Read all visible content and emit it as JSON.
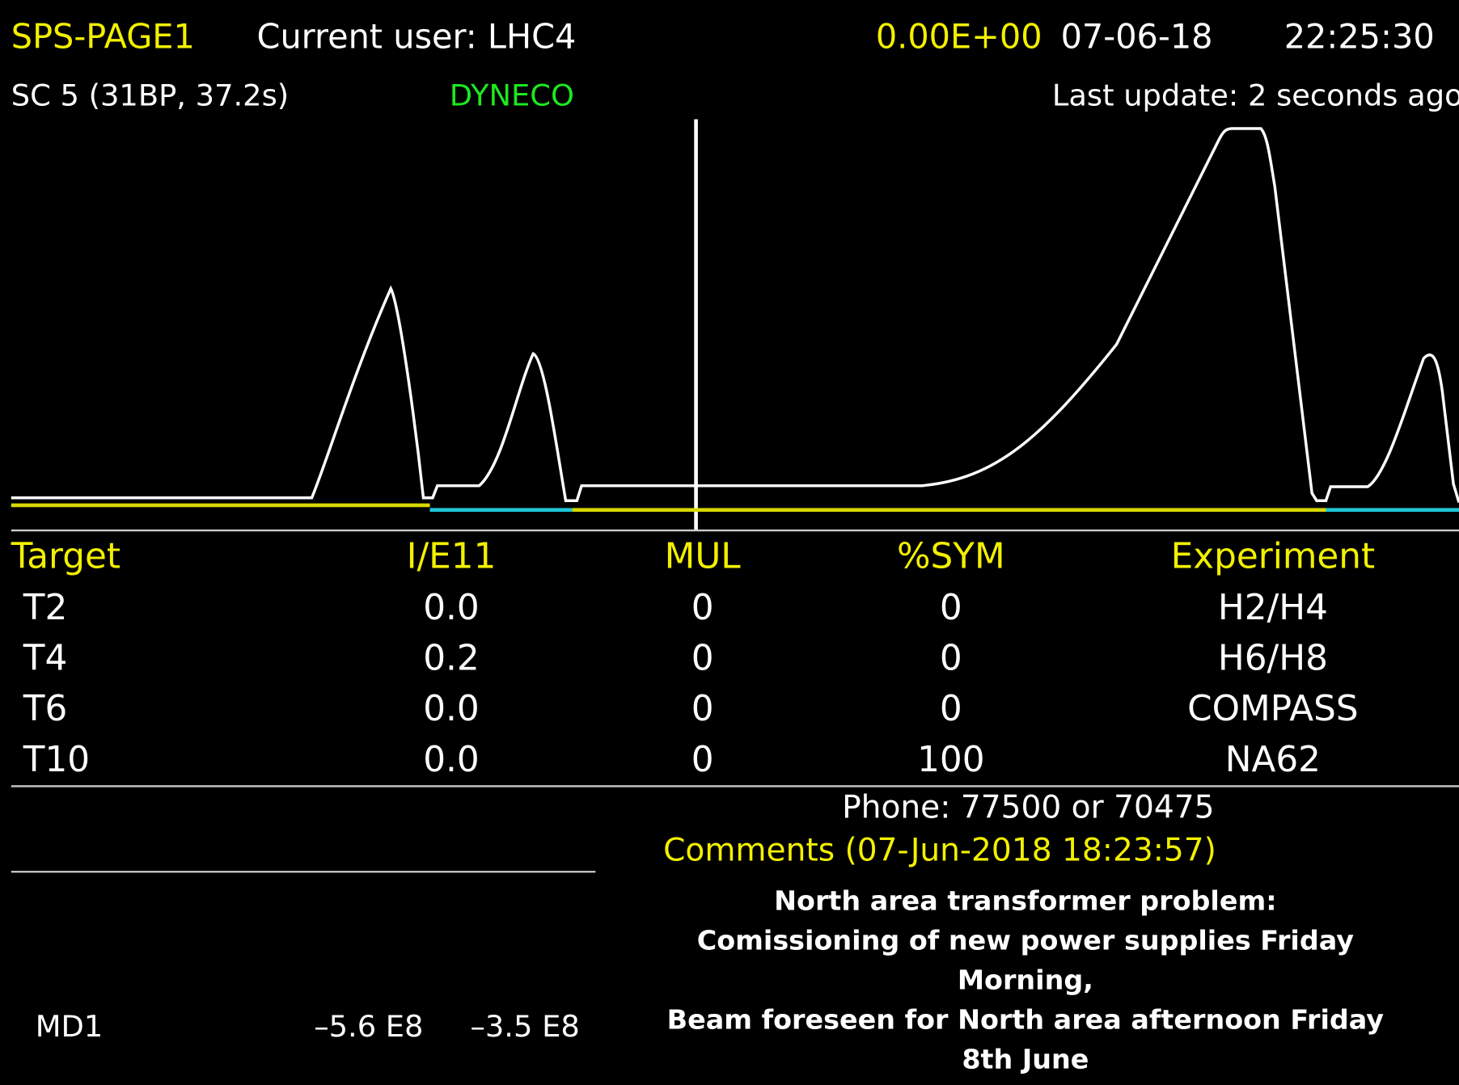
{
  "header": {
    "title": "SPS-PAGE1",
    "user": "Current user: LHC4",
    "intensity": "0.00E+00",
    "date": "07-06-18",
    "time": "22:25:30"
  },
  "subheader": {
    "cycle": "SC 5 (31BP, 37.2s)",
    "mode": "DYNECO",
    "last_update": "Last update: 2 seconds ago"
  },
  "table": {
    "columns": [
      "Target",
      "I/E11",
      "MUL",
      "%SYM",
      "Experiment"
    ],
    "rows": [
      [
        "T2",
        "0.0",
        "0",
        "0",
        "H2/H4"
      ],
      [
        "T4",
        "0.2",
        "0",
        "0",
        "H6/H8"
      ],
      [
        "T6",
        "0.0",
        "0",
        "0",
        "COMPASS"
      ],
      [
        "T10",
        "0.0",
        "0",
        "100",
        "NA62"
      ]
    ]
  },
  "phone": "Phone: 77500 or 70475",
  "comments": {
    "title": "Comments (07-Jun-2018 18:23:57)",
    "lines": [
      "North area transformer problem:",
      "Comissioning of new power supplies Friday",
      "Morning,",
      "Beam foreseen for North area afternoon Friday",
      "8th June"
    ]
  },
  "md": {
    "label": "MD1",
    "values": [
      "–5.6 E8",
      "–3.5 E8"
    ]
  }
}
